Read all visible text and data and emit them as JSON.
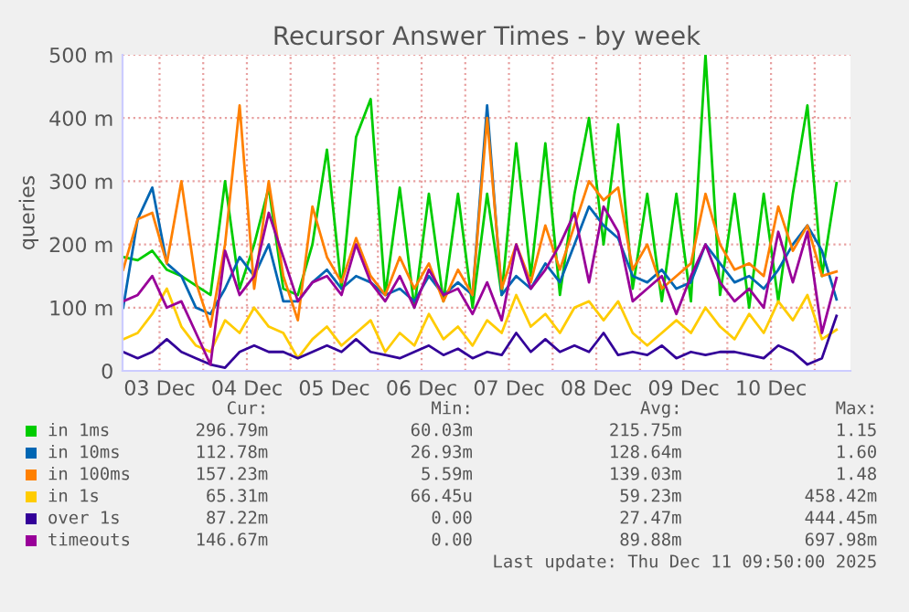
{
  "chart_data": {
    "type": "line",
    "title": "Recursor Answer Times - by week",
    "ylabel": "queries",
    "x": [
      "2025-12-03T02:00",
      "2025-12-03T06:00",
      "2025-12-03T10:00",
      "2025-12-03T14:00",
      "2025-12-03T18:00",
      "2025-12-03T22:00",
      "2025-12-04T02:00",
      "2025-12-04T06:00",
      "2025-12-04T10:00",
      "2025-12-04T14:00",
      "2025-12-04T18:00",
      "2025-12-04T22:00",
      "2025-12-05T02:00",
      "2025-12-05T06:00",
      "2025-12-05T10:00",
      "2025-12-05T14:00",
      "2025-12-05T18:00",
      "2025-12-05T22:00",
      "2025-12-06T02:00",
      "2025-12-06T06:00",
      "2025-12-06T10:00",
      "2025-12-06T14:00",
      "2025-12-06T18:00",
      "2025-12-06T22:00",
      "2025-12-07T02:00",
      "2025-12-07T06:00",
      "2025-12-07T10:00",
      "2025-12-07T14:00",
      "2025-12-07T18:00",
      "2025-12-07T22:00",
      "2025-12-08T02:00",
      "2025-12-08T06:00",
      "2025-12-08T10:00",
      "2025-12-08T14:00",
      "2025-12-08T18:00",
      "2025-12-08T22:00",
      "2025-12-09T02:00",
      "2025-12-09T06:00",
      "2025-12-09T10:00",
      "2025-12-09T14:00",
      "2025-12-09T18:00",
      "2025-12-09T22:00",
      "2025-12-10T02:00",
      "2025-12-10T06:00",
      "2025-12-10T10:00",
      "2025-12-10T14:00",
      "2025-12-10T18:00",
      "2025-12-10T22:00",
      "2025-12-11T02:00",
      "2025-12-11T06:00"
    ],
    "series": [
      {
        "name": "in 1ms",
        "color": "#00cc00",
        "values": [
          180,
          175,
          190,
          160,
          150,
          135,
          120,
          300,
          130,
          200,
          290,
          130,
          120,
          200,
          350,
          130,
          370,
          430,
          120,
          290,
          100,
          280,
          110,
          280,
          100,
          280,
          120,
          360,
          150,
          360,
          120,
          280,
          400,
          200,
          390,
          130,
          280,
          110,
          280,
          110,
          500,
          120,
          280,
          100,
          280,
          110,
          280,
          420,
          150,
          297
        ]
      },
      {
        "name": "in 10ms",
        "color": "#0066b3",
        "values": [
          100,
          240,
          290,
          170,
          150,
          100,
          90,
          130,
          180,
          150,
          200,
          110,
          110,
          140,
          160,
          130,
          150,
          140,
          120,
          130,
          110,
          150,
          120,
          140,
          120,
          420,
          120,
          150,
          130,
          170,
          140,
          200,
          260,
          230,
          210,
          150,
          140,
          160,
          130,
          140,
          200,
          170,
          140,
          150,
          130,
          160,
          200,
          230,
          190,
          113
        ]
      },
      {
        "name": "in 100ms",
        "color": "#ff8000",
        "values": [
          160,
          240,
          250,
          170,
          300,
          140,
          70,
          200,
          420,
          130,
          300,
          150,
          80,
          260,
          180,
          140,
          210,
          150,
          120,
          180,
          130,
          170,
          110,
          160,
          120,
          400,
          130,
          200,
          140,
          230,
          160,
          230,
          300,
          270,
          290,
          160,
          200,
          130,
          150,
          170,
          280,
          200,
          160,
          170,
          150,
          260,
          190,
          230,
          150,
          157
        ]
      },
      {
        "name": "in 1s",
        "color": "#ffcc00",
        "values": [
          50,
          60,
          90,
          130,
          70,
          40,
          30,
          80,
          60,
          100,
          70,
          60,
          20,
          50,
          70,
          40,
          60,
          80,
          30,
          60,
          40,
          90,
          50,
          70,
          40,
          80,
          60,
          120,
          70,
          90,
          60,
          100,
          110,
          80,
          110,
          60,
          40,
          60,
          80,
          60,
          100,
          70,
          50,
          90,
          60,
          110,
          80,
          120,
          50,
          65
        ]
      },
      {
        "name": "over 1s",
        "color": "#330099",
        "values": [
          30,
          20,
          30,
          50,
          30,
          20,
          10,
          5,
          30,
          40,
          30,
          30,
          20,
          30,
          40,
          30,
          50,
          30,
          25,
          20,
          30,
          40,
          25,
          35,
          20,
          30,
          25,
          60,
          30,
          50,
          30,
          40,
          30,
          60,
          25,
          30,
          25,
          40,
          20,
          30,
          25,
          30,
          30,
          25,
          20,
          40,
          30,
          10,
          20,
          87
        ]
      },
      {
        "name": "timeouts",
        "color": "#990099",
        "values": [
          110,
          120,
          150,
          100,
          110,
          60,
          10,
          190,
          120,
          150,
          250,
          180,
          110,
          140,
          150,
          120,
          200,
          140,
          110,
          150,
          100,
          160,
          120,
          130,
          90,
          140,
          80,
          200,
          130,
          160,
          200,
          250,
          140,
          260,
          220,
          110,
          130,
          150,
          90,
          150,
          200,
          140,
          110,
          130,
          100,
          220,
          140,
          220,
          60,
          147
        ]
      }
    ],
    "xlim": [
      "2025-12-03T01:50",
      "2025-12-11T09:50"
    ],
    "xticks": [
      {
        "value": "2025-12-03T12:00",
        "label": "03 Dec"
      },
      {
        "value": "2025-12-04T00:00",
        "label": null
      },
      {
        "value": "2025-12-04T12:00",
        "label": "04 Dec"
      },
      {
        "value": "2025-12-05T00:00",
        "label": null
      },
      {
        "value": "2025-12-05T12:00",
        "label": "05 Dec"
      },
      {
        "value": "2025-12-06T00:00",
        "label": null
      },
      {
        "value": "2025-12-06T12:00",
        "label": "06 Dec"
      },
      {
        "value": "2025-12-07T00:00",
        "label": null
      },
      {
        "value": "2025-12-07T12:00",
        "label": "07 Dec"
      },
      {
        "value": "2025-12-08T00:00",
        "label": null
      },
      {
        "value": "2025-12-08T12:00",
        "label": "08 Dec"
      },
      {
        "value": "2025-12-09T00:00",
        "label": null
      },
      {
        "value": "2025-12-09T12:00",
        "label": "09 Dec"
      },
      {
        "value": "2025-12-10T00:00",
        "label": null
      },
      {
        "value": "2025-12-10T12:00",
        "label": "10 Dec"
      },
      {
        "value": "2025-12-11T00:00",
        "label": null
      }
    ],
    "ylim": [
      0,
      500
    ],
    "yticks": [
      0,
      {
        "value": 100,
        "label": "100 m"
      },
      {
        "value": 200,
        "label": "200 m"
      },
      {
        "value": 300,
        "label": "300 m"
      },
      {
        "value": 400,
        "label": "400 m"
      },
      {
        "value": 500,
        "label": "500 m"
      }
    ],
    "grid": true,
    "legend": "bottom",
    "marker": "none",
    "line_style": "solid",
    "annotations": [
      "Cur:",
      "Min:",
      "Avg:",
      "Max:",
      "296.79m",
      "60.03m",
      "215.75m",
      "1.15",
      "112.78m",
      "26.93m",
      "128.64m",
      "1.60",
      "157.23m",
      "5.59m",
      "139.03m",
      "1.48",
      "65.31m",
      "66.45u",
      "59.23m",
      "458.42m",
      "87.22m",
      "0.00",
      "27.47m",
      "444.45m",
      "146.67m",
      "0.00",
      "89.88m",
      "697.98m",
      "Last update: Thu Dec 11 09:50:00 2025"
    ]
  }
}
